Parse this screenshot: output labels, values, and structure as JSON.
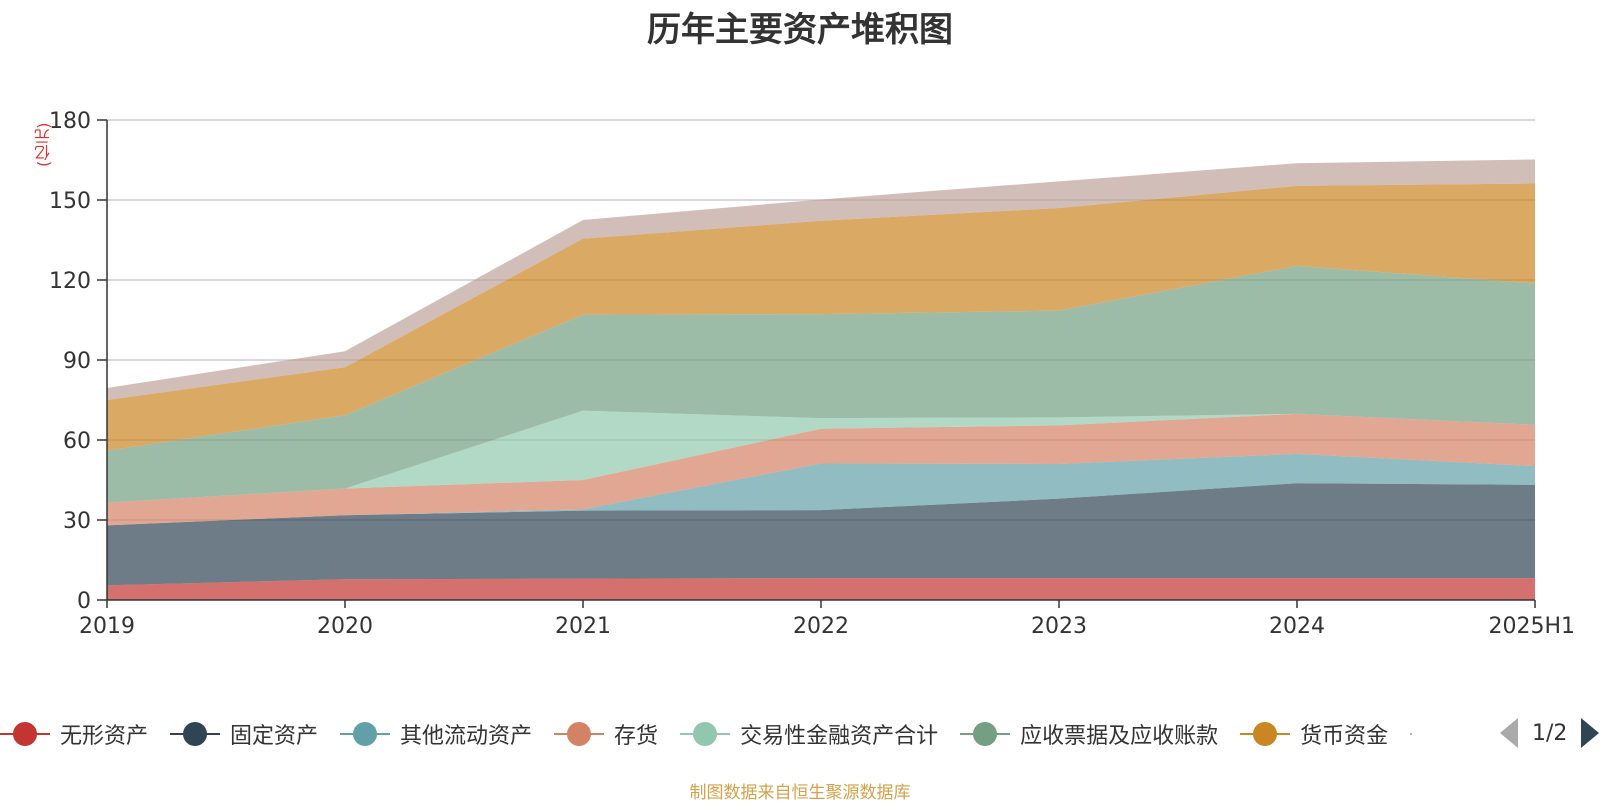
{
  "chart_data": {
    "type": "area",
    "stacked": true,
    "title": "历年主要资产堆积图",
    "ylabel": "(亿元)",
    "x": [
      "2019",
      "2020",
      "2021",
      "2022",
      "2023",
      "2024",
      "2025H1"
    ],
    "ylim": [
      0,
      180
    ],
    "yticks": [
      0,
      30,
      60,
      90,
      120,
      150,
      180
    ],
    "grid": true,
    "legend_position": "bottom",
    "legend_page": "1/2",
    "series": [
      {
        "name": "无形资产",
        "color": "#c23531",
        "values": [
          5.5,
          7.8,
          8,
          8.2,
          8.2,
          8.2,
          8.2
        ]
      },
      {
        "name": "固定资产",
        "color": "#2f4554",
        "values": [
          22.5,
          24,
          25.5,
          25.5,
          29.8,
          35.6,
          35
        ]
      },
      {
        "name": "其他流动资产",
        "color": "#61a0a8",
        "values": [
          0,
          0,
          0.5,
          17.5,
          13,
          11,
          7
        ]
      },
      {
        "name": "存货",
        "color": "#d48265",
        "values": [
          8.5,
          10,
          11,
          13,
          14.5,
          15,
          15.5
        ]
      },
      {
        "name": "交易性金融资产合计",
        "color": "#91c7ae",
        "values": [
          0,
          0,
          26,
          4,
          3,
          0,
          0
        ]
      },
      {
        "name": "应收票据及应收账款",
        "color": "#749f83",
        "values": [
          19.5,
          27.5,
          36,
          39,
          40,
          55.5,
          53
        ]
      },
      {
        "name": "货币资金",
        "color": "#ca8622",
        "values": [
          19,
          18,
          28.5,
          35,
          38.5,
          30,
          37.5
        ]
      },
      {
        "color": "#bda29a",
        "values": [
          4.5,
          6,
          7,
          8,
          10,
          8.5,
          9
        ]
      }
    ]
  },
  "source_note": "制图数据来自恒生聚源数据库"
}
